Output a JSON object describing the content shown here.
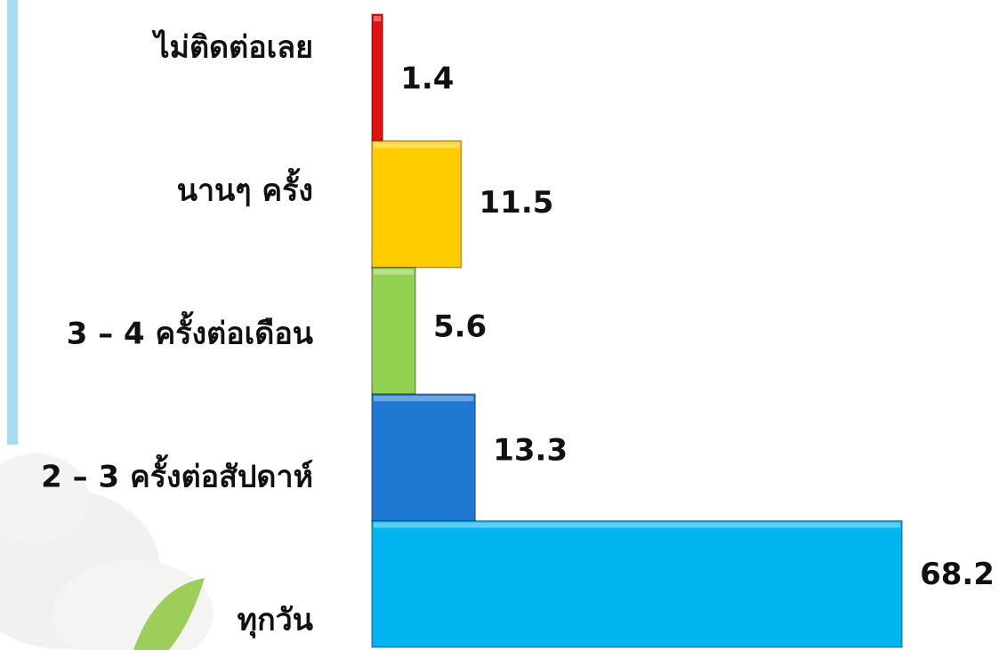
{
  "chart_data": {
    "type": "bar",
    "orientation": "horizontal",
    "categories": [
      "ไม่ติดต่อเลย",
      "นานๆ ครั้ง",
      "3 – 4 ครั้งต่อเดือน",
      "2 – 3 ครั้งต่อสัปดาห์",
      "ทุกวัน"
    ],
    "values": [
      1.4,
      11.5,
      5.6,
      13.3,
      68.2
    ],
    "colors": [
      "#e31010",
      "#ffcc00",
      "#92d050",
      "#1f78d1",
      "#00b4f0"
    ]
  }
}
